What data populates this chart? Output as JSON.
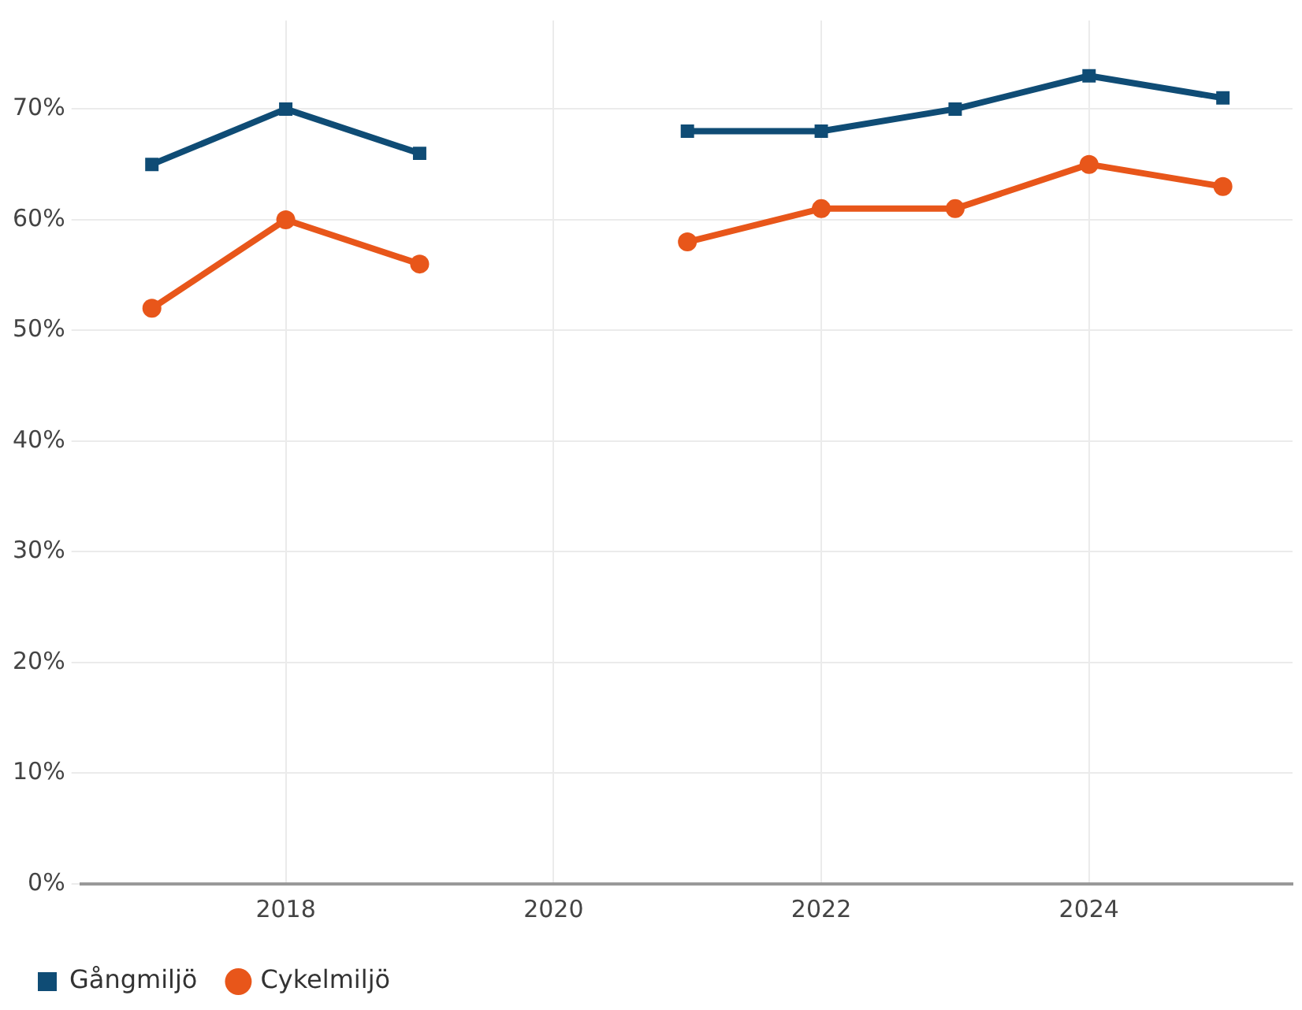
{
  "chart_data": {
    "type": "line",
    "x": [
      2017,
      2018,
      2019,
      2020,
      2021,
      2022,
      2023,
      2024,
      2025
    ],
    "series": [
      {
        "name": "Gångmiljö",
        "color": "#0f4c75",
        "marker": "square",
        "values": [
          65,
          70,
          66,
          null,
          68,
          68,
          70,
          73,
          71
        ]
      },
      {
        "name": "Cykelmiljö",
        "color": "#e8561a",
        "marker": "circle",
        "values": [
          52,
          60,
          56,
          null,
          58,
          61,
          61,
          65,
          63
        ]
      }
    ],
    "xlim": [
      2016.47,
      2025.52
    ],
    "xticks": [
      2018,
      2020,
      2022,
      2024
    ],
    "ylim": [
      0,
      78
    ],
    "yticks": [
      {
        "value": 0,
        "label": "0%"
      },
      {
        "value": 10,
        "label": "10%"
      },
      {
        "value": 20,
        "label": "20%"
      },
      {
        "value": 30,
        "label": "30%"
      },
      {
        "value": 40,
        "label": "40%"
      },
      {
        "value": 50,
        "label": "50%"
      },
      {
        "value": 60,
        "label": "60%"
      },
      {
        "value": 70,
        "label": "70%"
      }
    ],
    "grid": true,
    "legend": "bottom left",
    "line_style": "solid"
  }
}
